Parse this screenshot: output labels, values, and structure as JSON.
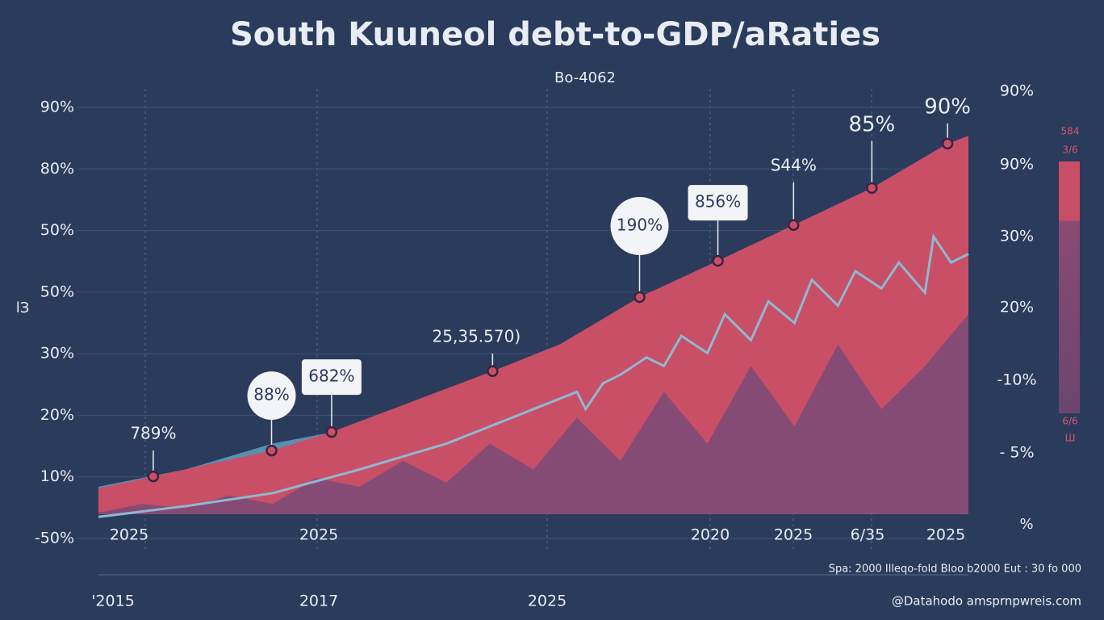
{
  "chart_data": {
    "type": "area",
    "title": "South Kuuneol debt-to-GDP/aRaties",
    "subtitle": "Bo-4062",
    "y_axis_title": "lЗ",
    "y_axis_labels": [
      "90%",
      "80%",
      "50%",
      "50%",
      "30%",
      "20%",
      "10%",
      "-50%"
    ],
    "right_axis_labels": [
      "90%",
      "90%",
      "30%",
      "20%",
      "-10%",
      "- 5%"
    ],
    "right_bar_labels": [
      "584",
      "3/6",
      "6/6",
      "Ш"
    ],
    "right_corner_label": "%",
    "x_labels_row1": [
      "2025",
      "2025",
      "2020",
      "2025",
      "6/35",
      "2025"
    ],
    "x_labels_row2": [
      "'2015",
      "2017",
      "2025"
    ],
    "footer_legend": "Spa: 2000   Illeqo-fold   Bloo b2000   Eut : 30 fo 000",
    "source": "@Datahodo amsprnpwreis.com",
    "xlim": [
      0,
      100
    ],
    "ylim": [
      0,
      100
    ],
    "series": [
      {
        "name": "blue",
        "color": "#5b8fb0",
        "x": [
          0,
          10,
          20,
          33,
          42,
          45.3
        ],
        "values": [
          12,
          16,
          22,
          27,
          36,
          38.8
        ]
      },
      {
        "name": "red",
        "color": "#c94f66",
        "x": [
          0,
          6.3,
          19.9,
          26.8,
          45.3,
          53,
          62.2,
          71.2,
          79.9,
          88.9,
          97.6,
          100
        ],
        "values": [
          11.6,
          14.4,
          20.4,
          24.7,
          38.8,
          45,
          56.0,
          64.4,
          72.7,
          81.3,
          91.6,
          93.4
        ]
      },
      {
        "name": "purple",
        "color": "#7a4a78",
        "x": [
          0,
          5,
          10,
          15,
          20,
          25,
          30,
          35,
          40,
          45,
          50,
          55,
          60,
          65,
          70,
          75,
          80,
          85,
          90,
          95,
          100
        ],
        "values": [
          6,
          8,
          7,
          10,
          8,
          14,
          12,
          18,
          13,
          22,
          16,
          28,
          18,
          34,
          22,
          40,
          26,
          45,
          30,
          40,
          52
        ]
      },
      {
        "name": "line",
        "color": "#8fb8d0",
        "x": [
          0,
          10,
          20,
          30,
          40,
          50,
          55,
          56,
          58,
          60,
          63,
          65,
          67,
          70,
          72,
          75,
          77,
          80,
          82,
          85,
          87,
          90,
          92,
          95,
          96,
          98,
          100
        ],
        "values": [
          5,
          7.5,
          10.5,
          16,
          22,
          30,
          34,
          30,
          36,
          38,
          42,
          40,
          47,
          43,
          52,
          46,
          55,
          50,
          60,
          54,
          62,
          58,
          64,
          57,
          70,
          64,
          66
        ]
      }
    ],
    "markers": {
      "series": 1,
      "points": [
        1,
        2,
        3,
        4,
        6,
        7,
        8,
        9,
        10
      ]
    },
    "annotations": [
      {
        "text": "789%",
        "style": "plain"
      },
      {
        "text": "88%",
        "style": "bubble"
      },
      {
        "text": "682%",
        "style": "box"
      },
      {
        "text": "25,35.570)",
        "style": "plain"
      },
      {
        "text": "190%",
        "style": "bubble"
      },
      {
        "text": "856%",
        "style": "box"
      },
      {
        "text": "S44%",
        "style": "plain"
      },
      {
        "text": "85%",
        "style": "plain"
      },
      {
        "text": "90%",
        "style": "plain"
      }
    ]
  }
}
